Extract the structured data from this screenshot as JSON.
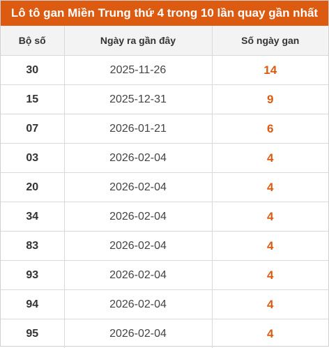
{
  "title": "Lô tô gan Miền Trung thứ 4 trong 10 lần quay gần nhất",
  "columns": [
    "Bộ số",
    "Ngày ra gần đây",
    "Số ngày gan"
  ],
  "rows": [
    {
      "number": "30",
      "last_date": "2025-11-26",
      "days": "14"
    },
    {
      "number": "15",
      "last_date": "2025-12-31",
      "days": "9"
    },
    {
      "number": "07",
      "last_date": "2026-01-21",
      "days": "6"
    },
    {
      "number": "03",
      "last_date": "2026-02-04",
      "days": "4"
    },
    {
      "number": "20",
      "last_date": "2026-02-04",
      "days": "4"
    },
    {
      "number": "34",
      "last_date": "2026-02-04",
      "days": "4"
    },
    {
      "number": "83",
      "last_date": "2026-02-04",
      "days": "4"
    },
    {
      "number": "93",
      "last_date": "2026-02-04",
      "days": "4"
    },
    {
      "number": "94",
      "last_date": "2026-02-04",
      "days": "4"
    },
    {
      "number": "95",
      "last_date": "2026-02-04",
      "days": "4"
    }
  ],
  "colors": {
    "accent": "#dd5a11",
    "header_bg": "#f3f3f3",
    "border": "#d9d9d9"
  }
}
